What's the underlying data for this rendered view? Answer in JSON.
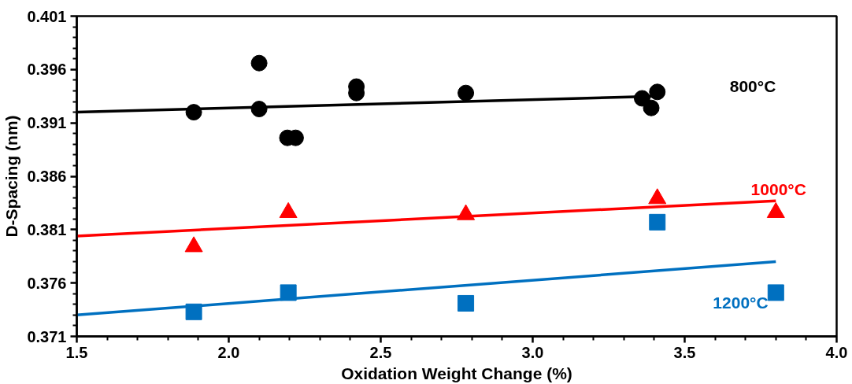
{
  "chart_data": {
    "type": "scatter",
    "xlabel": "Oxidation Weight Change (%)",
    "ylabel": "D-Spacing (nm)",
    "xlim": [
      1.5,
      4.0
    ],
    "xticks": [
      {
        "value": 1.5,
        "label": "1.5"
      },
      {
        "value": 2.0,
        "label": "2.0"
      },
      {
        "value": 2.5,
        "label": "2.5"
      },
      {
        "value": 3.0,
        "label": "3.0"
      },
      {
        "value": 3.5,
        "label": "3.5"
      },
      {
        "value": 4.0,
        "label": "4.0"
      }
    ],
    "ylim": [
      0.371,
      0.401
    ],
    "yticks": [
      0.371,
      0.376,
      0.381,
      0.386,
      0.391,
      0.396,
      0.401
    ],
    "grid": false,
    "series": [
      {
        "name": "800°C",
        "marker": "circle",
        "color": "#000000",
        "x": [
          1.885,
          2.1,
          2.1,
          2.193,
          2.22,
          2.42,
          2.42,
          2.78,
          3.36,
          3.41,
          3.39
        ],
        "values": [
          0.392,
          0.3966,
          0.3923,
          0.3896,
          0.3896,
          0.3944,
          0.3938,
          0.3938,
          0.3933,
          0.3939,
          0.3924
        ]
      },
      {
        "type": "line",
        "color": "#000000",
        "x": [
          1.5,
          3.41
        ],
        "values": [
          0.392,
          0.3935
        ]
      },
      {
        "name": "1000°C",
        "marker": "triangle",
        "color": "#ff0000",
        "x": [
          1.885,
          2.196,
          2.78,
          3.41,
          3.8
        ],
        "values": [
          0.3794,
          0.3826,
          0.3824,
          0.3839,
          0.3826
        ]
      },
      {
        "type": "line",
        "color": "#ff0000",
        "x": [
          1.5,
          3.8
        ],
        "values": [
          0.3804,
          0.3837
        ]
      },
      {
        "name": "1200°C",
        "marker": "square",
        "color": "#0070c0",
        "x": [
          1.885,
          2.196,
          2.78,
          3.41,
          3.8
        ],
        "values": [
          0.3733,
          0.3751,
          0.3741,
          0.3817,
          0.3751
        ]
      },
      {
        "type": "line",
        "color": "#0070c0",
        "x": [
          1.5,
          3.8
        ],
        "values": [
          0.373,
          0.378
        ]
      }
    ]
  }
}
